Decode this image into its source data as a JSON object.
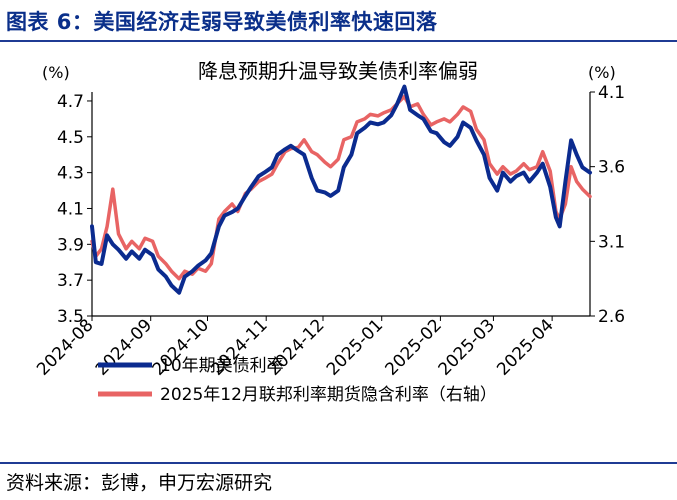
{
  "figure_title": "图表 6：美国经济走弱导致美债利率快速回落",
  "source": "资料来源：彭博，申万宏源研究",
  "colors": {
    "series1": "#0b2b8f",
    "series2": "#e86464",
    "title": "#0a2f8a",
    "axis": "#000000"
  },
  "chart_data": {
    "type": "line",
    "title": "降息预期升温导致美债利率偏弱",
    "y_left_unit": "(%)",
    "y_right_unit": "(%)",
    "y_left_ticks": [
      "3.5",
      "3.7",
      "3.9",
      "4.1",
      "4.3",
      "4.5",
      "4.7"
    ],
    "y_right_ticks": [
      "2.6",
      "3.1",
      "3.6",
      "4.1"
    ],
    "ylim_left": [
      3.5,
      4.75
    ],
    "ylim_right": [
      2.6,
      4.1
    ],
    "x_ticks": [
      "2024-08",
      "2024-09",
      "2024-10",
      "2024-11",
      "2024-12",
      "2025-01",
      "2025-02",
      "2025-03",
      "2025-04"
    ],
    "legend_placement": "bottom",
    "series": [
      {
        "name": "10年期美债利率",
        "axis": "left",
        "x": [
          "2024-08-01",
          "2024-08-03",
          "2024-08-06",
          "2024-08-09",
          "2024-08-12",
          "2024-08-15",
          "2024-08-19",
          "2024-08-22",
          "2024-08-26",
          "2024-08-29",
          "2024-09-02",
          "2024-09-05",
          "2024-09-09",
          "2024-09-12",
          "2024-09-16",
          "2024-09-19",
          "2024-09-23",
          "2024-09-26",
          "2024-09-30",
          "2024-10-03",
          "2024-10-07",
          "2024-10-10",
          "2024-10-14",
          "2024-10-17",
          "2024-10-21",
          "2024-10-24",
          "2024-10-28",
          "2024-10-31",
          "2024-11-04",
          "2024-11-07",
          "2024-11-11",
          "2024-11-14",
          "2024-11-18",
          "2024-11-21",
          "2024-11-25",
          "2024-11-28",
          "2024-12-02",
          "2024-12-05",
          "2024-12-09",
          "2024-12-12",
          "2024-12-16",
          "2024-12-19",
          "2024-12-23",
          "2024-12-26",
          "2024-12-30",
          "2025-01-02",
          "2025-01-06",
          "2025-01-09",
          "2025-01-13",
          "2025-01-16",
          "2025-01-20",
          "2025-01-23",
          "2025-01-27",
          "2025-01-30",
          "2025-02-03",
          "2025-02-06",
          "2025-02-10",
          "2025-02-13",
          "2025-02-17",
          "2025-02-20",
          "2025-02-24",
          "2025-02-27",
          "2025-03-03",
          "2025-03-06",
          "2025-03-10",
          "2025-03-13",
          "2025-03-17",
          "2025-03-20",
          "2025-03-24",
          "2025-03-27",
          "2025-03-31",
          "2025-04-03",
          "2025-04-05",
          "2025-04-08",
          "2025-04-11",
          "2025-04-14",
          "2025-04-17",
          "2025-04-21"
        ],
        "values": [
          4.0,
          3.8,
          3.79,
          3.95,
          3.9,
          3.87,
          3.82,
          3.86,
          3.82,
          3.87,
          3.84,
          3.76,
          3.72,
          3.67,
          3.63,
          3.72,
          3.75,
          3.78,
          3.81,
          3.85,
          4.0,
          4.06,
          4.08,
          4.1,
          4.17,
          4.22,
          4.28,
          4.3,
          4.33,
          4.4,
          4.43,
          4.45,
          4.42,
          4.4,
          4.27,
          4.2,
          4.19,
          4.17,
          4.2,
          4.33,
          4.4,
          4.52,
          4.55,
          4.58,
          4.57,
          4.58,
          4.62,
          4.68,
          4.78,
          4.65,
          4.62,
          4.6,
          4.53,
          4.52,
          4.47,
          4.45,
          4.5,
          4.58,
          4.55,
          4.48,
          4.4,
          4.27,
          4.2,
          4.3,
          4.25,
          4.28,
          4.3,
          4.25,
          4.3,
          4.35,
          4.22,
          4.05,
          4.0,
          4.25,
          4.48,
          4.4,
          4.33,
          4.3
        ]
      },
      {
        "name": "2025年12月联邦利率期货隐含利率（右轴）",
        "axis": "right",
        "x": [
          "2024-08-01",
          "2024-08-03",
          "2024-08-06",
          "2024-08-09",
          "2024-08-12",
          "2024-08-15",
          "2024-08-19",
          "2024-08-22",
          "2024-08-26",
          "2024-08-29",
          "2024-09-02",
          "2024-09-05",
          "2024-09-09",
          "2024-09-12",
          "2024-09-16",
          "2024-09-19",
          "2024-09-23",
          "2024-09-26",
          "2024-09-30",
          "2024-10-03",
          "2024-10-07",
          "2024-10-10",
          "2024-10-14",
          "2024-10-17",
          "2024-10-21",
          "2024-10-24",
          "2024-10-28",
          "2024-10-31",
          "2024-11-04",
          "2024-11-07",
          "2024-11-11",
          "2024-11-14",
          "2024-11-18",
          "2024-11-21",
          "2024-11-25",
          "2024-11-28",
          "2024-12-02",
          "2024-12-05",
          "2024-12-09",
          "2024-12-12",
          "2024-12-16",
          "2024-12-19",
          "2024-12-23",
          "2024-12-26",
          "2024-12-30",
          "2025-01-02",
          "2025-01-06",
          "2025-01-09",
          "2025-01-13",
          "2025-01-16",
          "2025-01-20",
          "2025-01-23",
          "2025-01-27",
          "2025-01-30",
          "2025-02-03",
          "2025-02-06",
          "2025-02-10",
          "2025-02-13",
          "2025-02-17",
          "2025-02-20",
          "2025-02-24",
          "2025-02-27",
          "2025-03-03",
          "2025-03-06",
          "2025-03-10",
          "2025-03-13",
          "2025-03-17",
          "2025-03-20",
          "2025-03-24",
          "2025-03-27",
          "2025-03-31",
          "2025-04-03",
          "2025-04-05",
          "2025-04-08",
          "2025-04-11",
          "2025-04-14",
          "2025-04-17",
          "2025-04-21"
        ],
        "values": [
          3.1,
          3.0,
          3.05,
          3.2,
          3.45,
          3.15,
          3.05,
          3.1,
          3.05,
          3.12,
          3.1,
          3.0,
          2.95,
          2.9,
          2.85,
          2.9,
          2.88,
          2.92,
          2.9,
          2.95,
          3.25,
          3.3,
          3.35,
          3.3,
          3.42,
          3.45,
          3.5,
          3.52,
          3.55,
          3.62,
          3.7,
          3.72,
          3.73,
          3.78,
          3.7,
          3.68,
          3.63,
          3.6,
          3.65,
          3.78,
          3.8,
          3.9,
          3.92,
          3.95,
          3.94,
          3.96,
          3.98,
          4.02,
          4.07,
          4.0,
          4.02,
          3.95,
          3.88,
          3.9,
          3.92,
          3.9,
          3.95,
          4.0,
          3.97,
          3.85,
          3.78,
          3.62,
          3.55,
          3.6,
          3.55,
          3.57,
          3.62,
          3.58,
          3.6,
          3.7,
          3.57,
          3.3,
          3.25,
          3.35,
          3.6,
          3.5,
          3.45,
          3.4
        ]
      }
    ]
  }
}
